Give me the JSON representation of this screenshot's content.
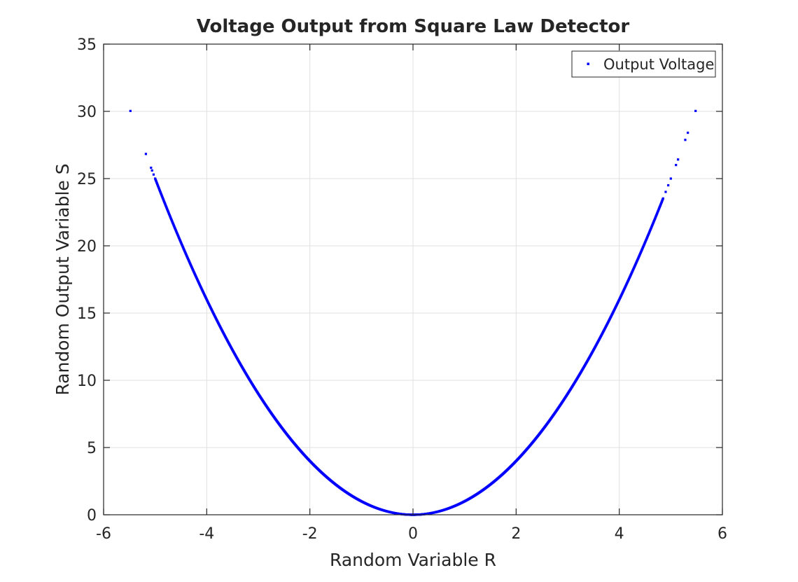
{
  "chart_data": {
    "type": "scatter",
    "title": "Voltage Output from Square Law Detector",
    "xlabel": "Random Variable R",
    "ylabel": "Random Output Variable S",
    "xlim": [
      -6,
      6
    ],
    "ylim": [
      0,
      35
    ],
    "xticks": [
      -6,
      -4,
      -2,
      0,
      2,
      4,
      6
    ],
    "yticks": [
      0,
      5,
      10,
      15,
      20,
      25,
      30,
      35
    ],
    "grid": true,
    "legend_position": "top-right",
    "series": [
      {
        "name": "Output Voltage",
        "color": "#0000ff",
        "marker": "point",
        "relation": "S = R^2",
        "dense_range": [
          -5.0,
          4.85
        ],
        "outlier_x": [
          -5.48,
          -5.18,
          -5.08,
          -5.06,
          -5.03,
          4.9,
          4.95,
          5.0,
          5.1,
          5.14,
          5.28,
          5.33,
          5.48
        ]
      }
    ]
  }
}
